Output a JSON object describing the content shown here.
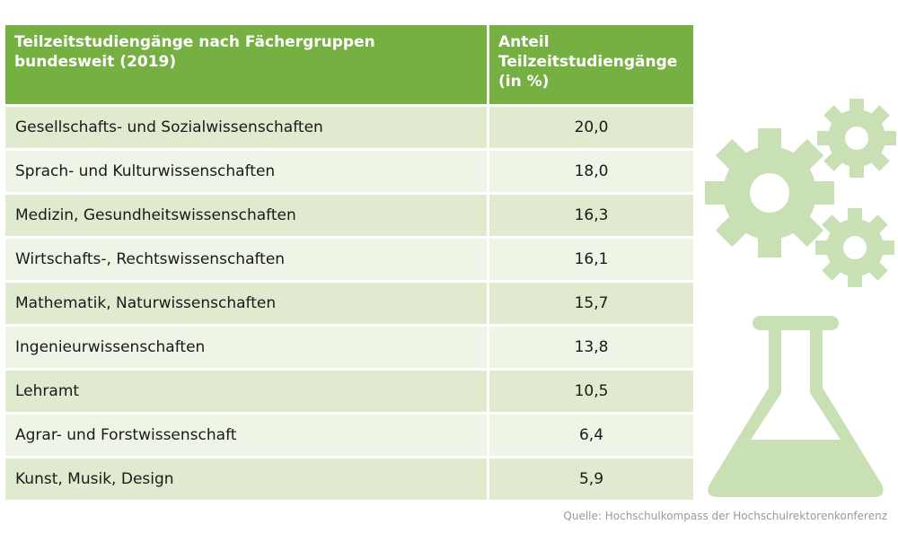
{
  "table": {
    "header": {
      "col1": "Teilzeitstudiengänge nach Fächergruppen bundesweit (2019)",
      "col2": "Anteil Teilzeitstudiengänge (in %)"
    },
    "rows": [
      {
        "field": "Gesellschafts- und Sozialwissenschaften",
        "value": "20,0"
      },
      {
        "field": "Sprach- und Kulturwissenschaften",
        "value": "18,0"
      },
      {
        "field": "Medizin, Gesundheitswissenschaften",
        "value": "16,3"
      },
      {
        "field": "Wirtschafts-, Rechtswissenschaften",
        "value": "16,1"
      },
      {
        "field": "Mathematik, Naturwissenschaften",
        "value": "15,7"
      },
      {
        "field": "Ingenieurwissenschaften",
        "value": "13,8"
      },
      {
        "field": "Lehramt",
        "value": "10,5"
      },
      {
        "field": "Agrar- und Forstwissenschaft",
        "value": "6,4"
      },
      {
        "field": "Kunst, Musik, Design",
        "value": "5,9"
      }
    ]
  },
  "source": "Quelle: Hochschulkompass der Hochschulrektorenkonferenz",
  "colors": {
    "header_green": "#76b043",
    "row_dark": "#dfeacf",
    "row_light": "#eef4e6",
    "icon_green": "#c9e0b4"
  },
  "icons": [
    "gear-icon",
    "gear-icon",
    "gear-icon",
    "flask-icon"
  ]
}
